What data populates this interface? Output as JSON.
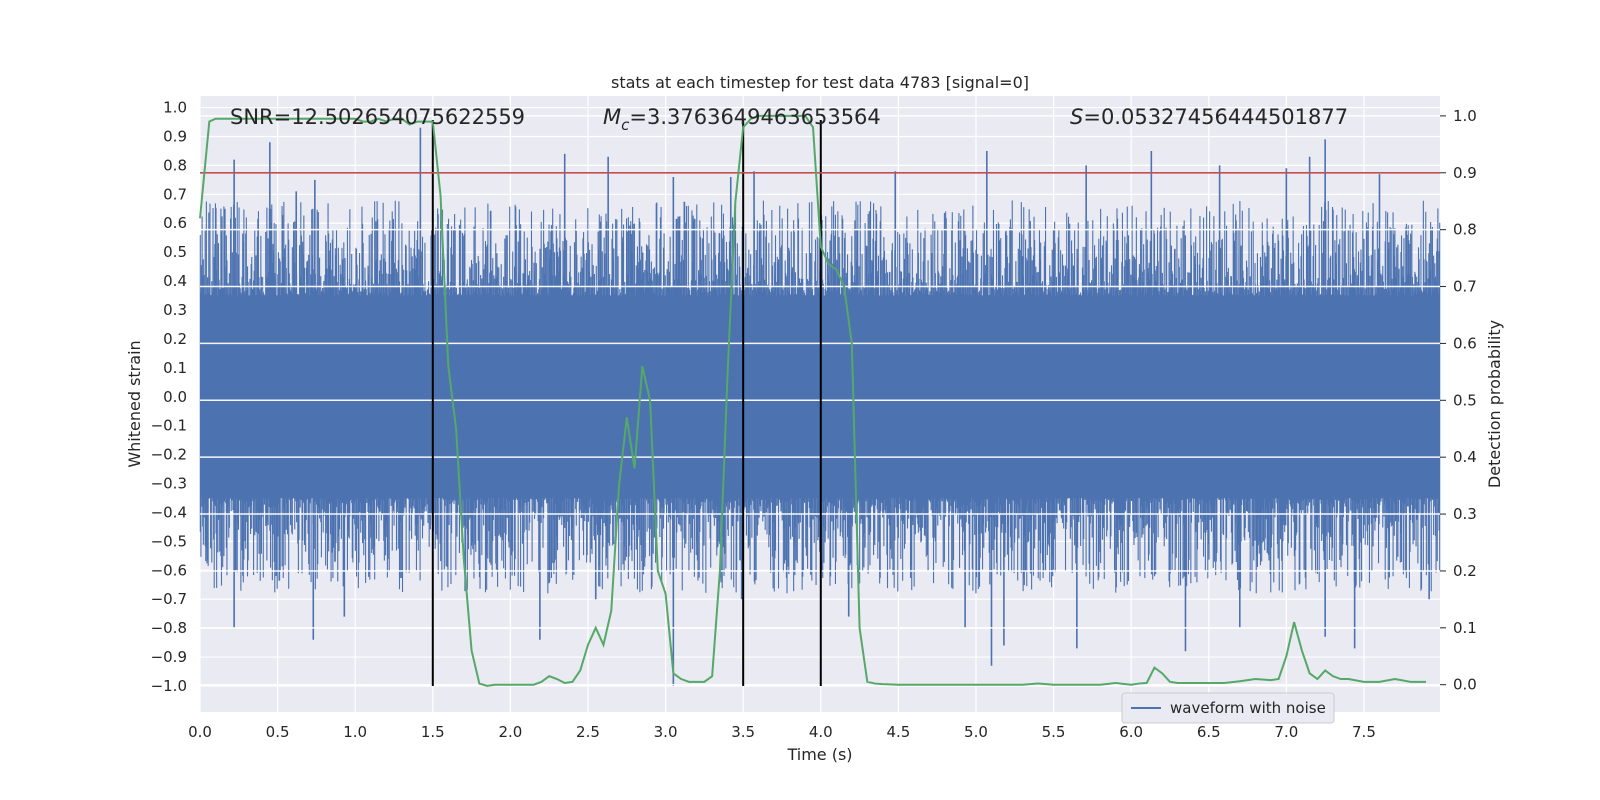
{
  "chart_data": {
    "type": "line",
    "title": "stats at each timestep for test data 4783 [signal=0]",
    "xlabel": "Time (s)",
    "ylabel": "Whitened strain",
    "y2label": "Detection probability",
    "xlim": [
      0.0,
      7.99
    ],
    "ylim": [
      -1.09,
      1.04
    ],
    "y2lim": [
      -0.048,
      1.035
    ],
    "xticks": [
      "0.0",
      "0.5",
      "1.0",
      "1.5",
      "2.0",
      "2.5",
      "3.0",
      "3.5",
      "4.0",
      "4.5",
      "5.0",
      "5.5",
      "6.0",
      "6.5",
      "7.0",
      "7.5"
    ],
    "yticks": [
      "1.0",
      "0.9",
      "0.8",
      "0.7",
      "0.6",
      "0.5",
      "0.4",
      "0.3",
      "0.2",
      "0.1",
      "0.0",
      "−0.1",
      "−0.2",
      "−0.3",
      "−0.4",
      "−0.5",
      "−0.6",
      "−0.7",
      "−0.8",
      "−0.9",
      "−1.0"
    ],
    "y2ticks": [
      "0.0",
      "0.1",
      "0.2",
      "0.3",
      "0.4",
      "0.5",
      "0.6",
      "0.7",
      "0.8",
      "0.9",
      "1.0"
    ],
    "annotations": {
      "snr": "SNR=12.502654075622559",
      "mc_symbol": "M",
      "mc_sub": "c",
      "mc_value": "=3.3763649463653564",
      "s_symbol": "S",
      "s_value": "=0.05327456444501877"
    },
    "threshold": {
      "value": 0.9,
      "axis": "y2",
      "color": "#c44e52"
    },
    "vertical_lines": {
      "x": [
        1.5,
        3.5,
        4.0
      ],
      "color": "#000000"
    },
    "legend": {
      "label": "waveform with noise",
      "position": "lower-right"
    },
    "series": [
      {
        "name": "waveform with noise",
        "axis": "y",
        "color": "#4c72b0",
        "kind": "noise",
        "samples": 2048,
        "core_band": [
          -0.35,
          0.35
        ],
        "typical_envelope": [
          -0.6,
          0.6
        ],
        "peaks": [
          [
            0.16,
            0.65
          ],
          [
            0.22,
            0.82
          ],
          [
            0.45,
            0.88
          ],
          [
            0.62,
            0.71
          ],
          [
            0.74,
            0.75
          ],
          [
            1.42,
            0.93
          ],
          [
            2.35,
            0.84
          ],
          [
            2.63,
            0.83
          ],
          [
            3.05,
            0.76
          ],
          [
            3.42,
            0.76
          ],
          [
            3.57,
            0.78
          ],
          [
            4.48,
            0.78
          ],
          [
            5.07,
            0.85
          ],
          [
            5.71,
            0.8
          ],
          [
            6.13,
            0.85
          ],
          [
            6.57,
            0.8
          ],
          [
            7.0,
            0.79
          ],
          [
            7.15,
            0.83
          ],
          [
            7.25,
            0.89
          ],
          [
            7.6,
            0.77
          ]
        ],
        "troughs": [
          [
            0.22,
            -0.8
          ],
          [
            0.73,
            -0.84
          ],
          [
            0.93,
            -0.76
          ],
          [
            2.19,
            -0.84
          ],
          [
            2.55,
            -0.7
          ],
          [
            3.05,
            -1.0
          ],
          [
            3.49,
            -0.7
          ],
          [
            4.18,
            -0.76
          ],
          [
            4.93,
            -0.8
          ],
          [
            5.1,
            -0.93
          ],
          [
            5.18,
            -0.86
          ],
          [
            5.65,
            -0.87
          ],
          [
            6.35,
            -0.88
          ],
          [
            6.7,
            -0.8
          ],
          [
            7.25,
            -0.83
          ],
          [
            7.44,
            -0.87
          ],
          [
            7.92,
            -0.7
          ]
        ]
      },
      {
        "name": "Detection probability",
        "axis": "y2",
        "color": "#55a868",
        "x": [
          0.0,
          0.06,
          0.1,
          0.15,
          0.2,
          0.25,
          0.3,
          0.35,
          0.4,
          0.45,
          0.5,
          0.55,
          0.6,
          0.65,
          0.7,
          0.75,
          0.8,
          0.85,
          0.9,
          0.95,
          1.0,
          1.05,
          1.1,
          1.15,
          1.2,
          1.25,
          1.3,
          1.35,
          1.4,
          1.45,
          1.5,
          1.55,
          1.6,
          1.65,
          1.7,
          1.75,
          1.8,
          1.85,
          1.9,
          1.95,
          2.0,
          2.05,
          2.1,
          2.15,
          2.2,
          2.25,
          2.3,
          2.35,
          2.4,
          2.45,
          2.5,
          2.55,
          2.6,
          2.65,
          2.7,
          2.75,
          2.8,
          2.85,
          2.9,
          2.95,
          3.0,
          3.05,
          3.1,
          3.15,
          3.2,
          3.25,
          3.3,
          3.35,
          3.4,
          3.45,
          3.5,
          3.55,
          3.6,
          3.65,
          3.7,
          3.75,
          3.8,
          3.85,
          3.9,
          3.95,
          4.0,
          4.05,
          4.1,
          4.15,
          4.2,
          4.25,
          4.3,
          4.35,
          4.4,
          4.5,
          4.6,
          4.7,
          4.8,
          4.9,
          5.0,
          5.1,
          5.2,
          5.3,
          5.4,
          5.5,
          5.6,
          5.7,
          5.8,
          5.9,
          6.0,
          6.05,
          6.1,
          6.15,
          6.2,
          6.25,
          6.3,
          6.4,
          6.5,
          6.6,
          6.7,
          6.8,
          6.9,
          6.95,
          7.0,
          7.05,
          7.1,
          7.15,
          7.2,
          7.25,
          7.3,
          7.35,
          7.4,
          7.5,
          7.6,
          7.7,
          7.8,
          7.9
        ],
        "values": [
          0.82,
          0.99,
          0.995,
          0.995,
          0.995,
          0.995,
          0.995,
          0.995,
          0.995,
          0.995,
          0.995,
          0.995,
          0.995,
          0.995,
          0.995,
          0.995,
          0.995,
          0.995,
          0.995,
          0.995,
          0.995,
          0.99,
          0.99,
          0.995,
          0.99,
          0.995,
          0.995,
          0.985,
          0.99,
          0.99,
          0.99,
          0.86,
          0.56,
          0.45,
          0.22,
          0.06,
          0.002,
          -0.002,
          0.0,
          0.0,
          0.0,
          0.0,
          0.0,
          0.0,
          0.005,
          0.015,
          0.01,
          0.003,
          0.005,
          0.025,
          0.07,
          0.1,
          0.07,
          0.13,
          0.35,
          0.47,
          0.38,
          0.56,
          0.5,
          0.2,
          0.16,
          0.02,
          0.01,
          0.005,
          0.005,
          0.005,
          0.015,
          0.2,
          0.55,
          0.85,
          0.98,
          0.995,
          1.0,
          1.0,
          1.0,
          1.0,
          1.0,
          1.0,
          1.0,
          0.98,
          0.77,
          0.74,
          0.73,
          0.7,
          0.6,
          0.1,
          0.005,
          0.002,
          0.001,
          0.0,
          0.0,
          0.0,
          0.0,
          0.0,
          0.0,
          0.0,
          0.0,
          0.0,
          0.002,
          0.0,
          0.0,
          0.0,
          0.0,
          0.003,
          0.0,
          0.002,
          0.003,
          0.03,
          0.02,
          0.005,
          0.003,
          0.003,
          0.003,
          0.003,
          0.006,
          0.01,
          0.008,
          0.01,
          0.05,
          0.11,
          0.06,
          0.02,
          0.01,
          0.025,
          0.015,
          0.01,
          0.01,
          0.005,
          0.005,
          0.01,
          0.005,
          0.005
        ]
      }
    ]
  }
}
